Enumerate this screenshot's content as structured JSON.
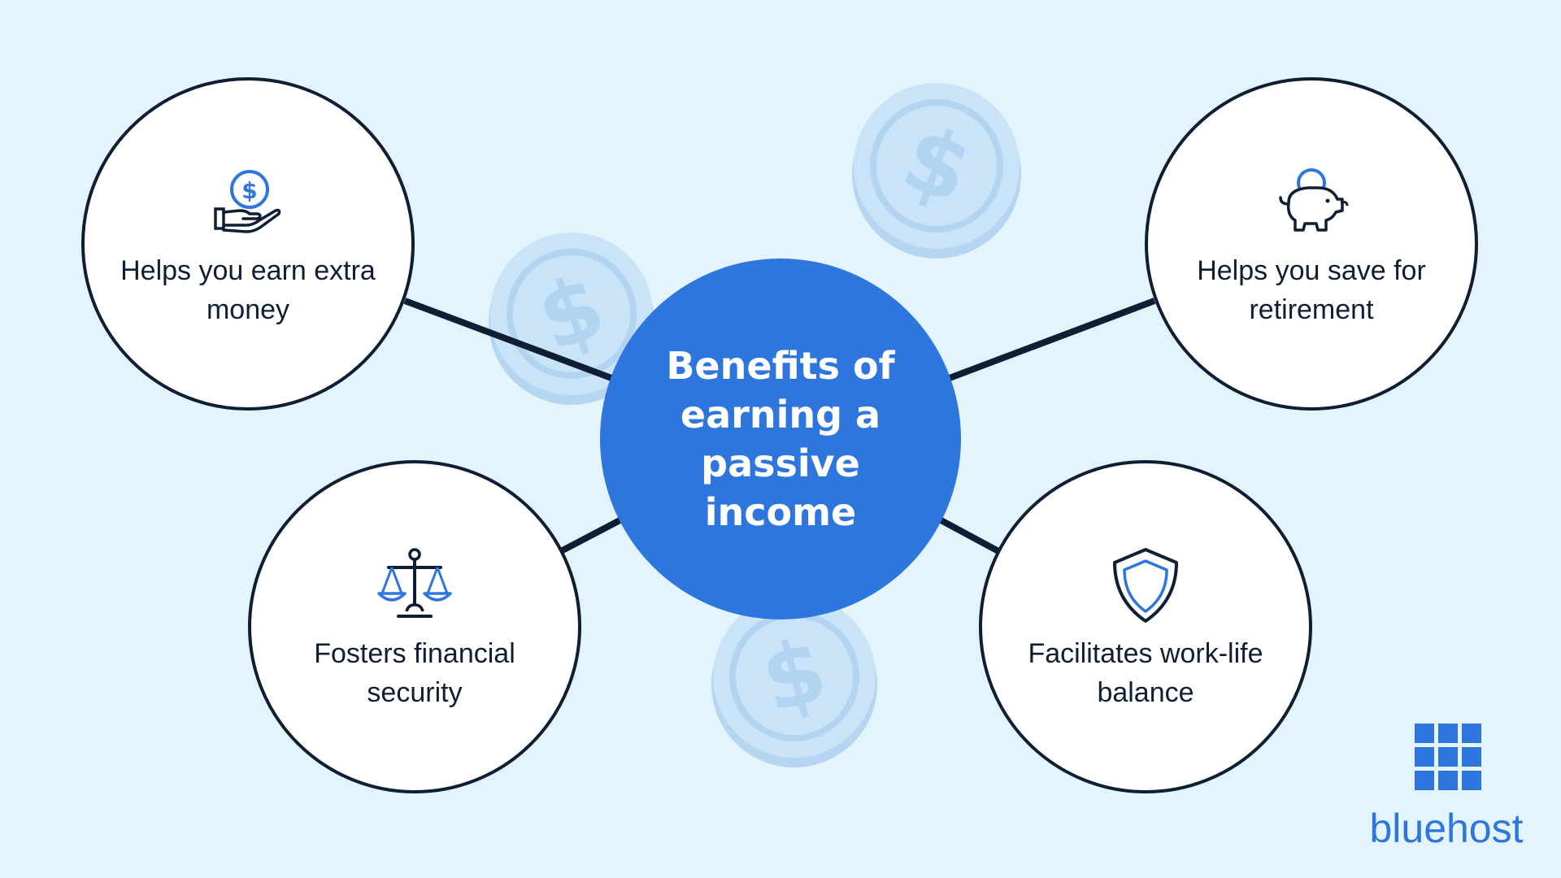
{
  "center": {
    "title": "Benefits of earning a passive income"
  },
  "benefits": [
    {
      "label": "Helps you earn extra money",
      "icon": "hand-coin-icon"
    },
    {
      "label": "Helps you save for retirement",
      "icon": "piggy-bank-icon"
    },
    {
      "label": "Fosters financial security",
      "icon": "scales-icon"
    },
    {
      "label": "Facilitates work-life balance",
      "icon": "shield-icon"
    }
  ],
  "logo": {
    "wordmark": "bluehost"
  },
  "colors": {
    "background": "#e4f4fd",
    "accent": "#2e76de",
    "outline": "#0f1e33",
    "coin": "#c6e2f8"
  }
}
